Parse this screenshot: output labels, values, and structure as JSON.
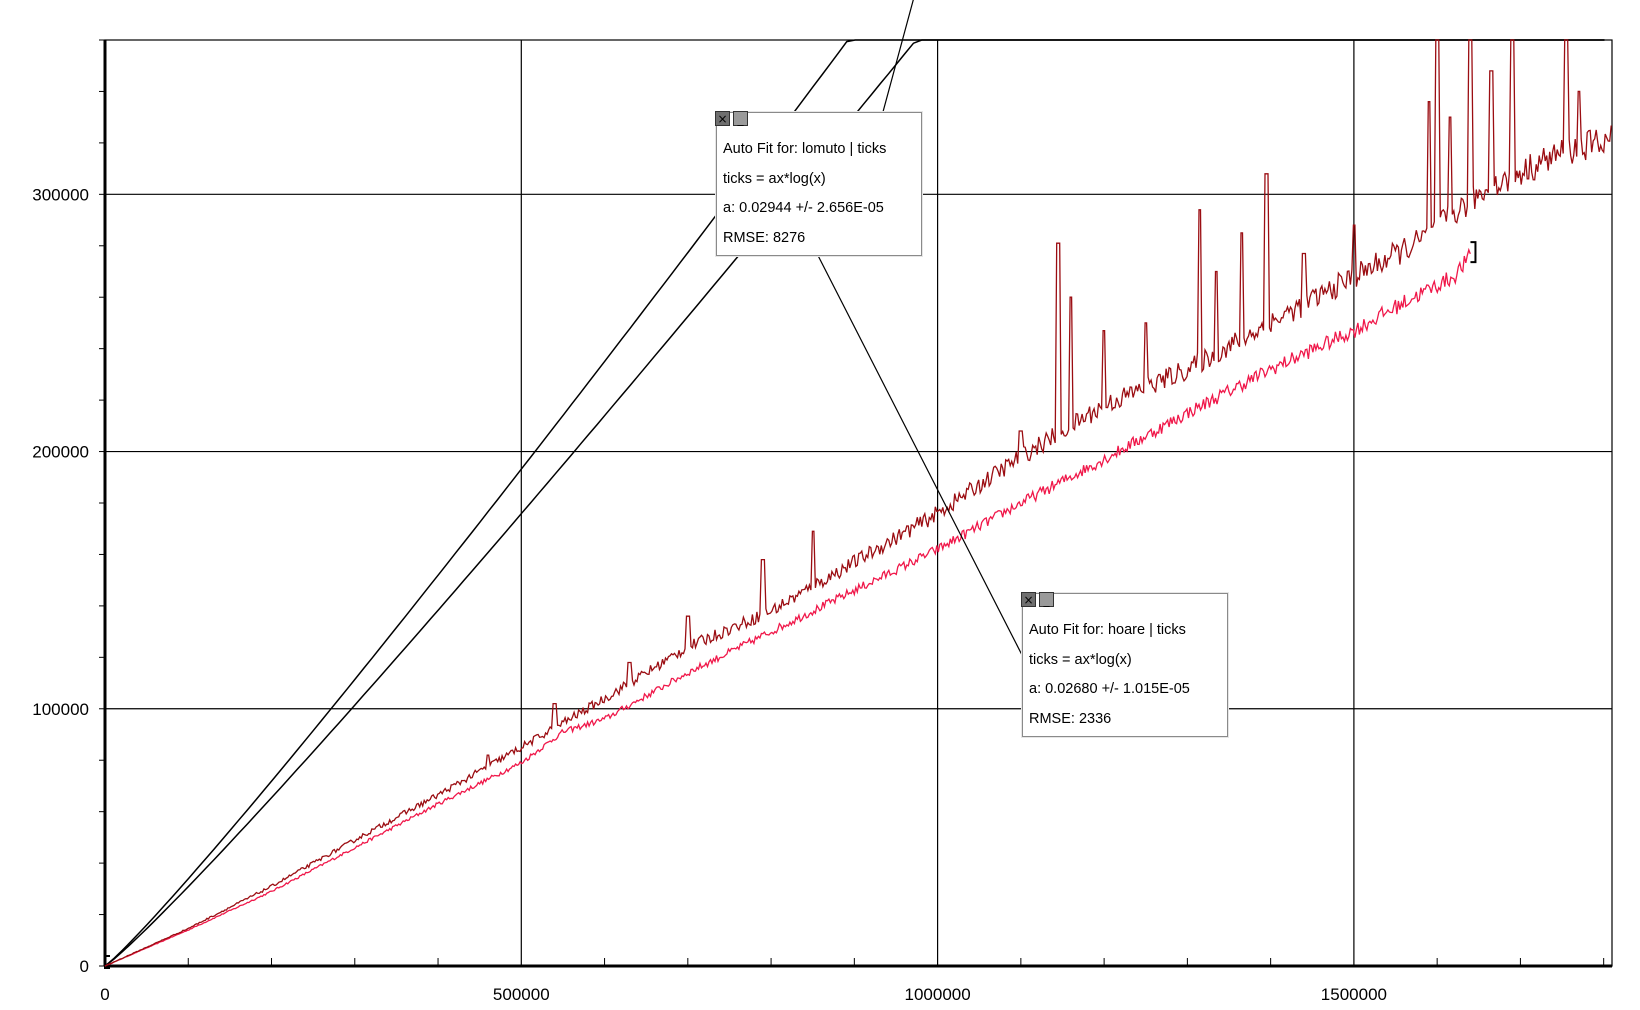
{
  "chart_data": {
    "type": "line",
    "xlim": [
      0,
      1810000
    ],
    "ylim": [
      0,
      360000
    ],
    "xticks": [
      0,
      500000,
      1000000,
      1500000
    ],
    "xtick_labels": [
      "0",
      "500000",
      "1000000",
      "1500000"
    ],
    "yticks": [
      0,
      100000,
      200000,
      300000
    ],
    "ytick_labels": [
      "0",
      "100000",
      "200000",
      "300000"
    ],
    "grid": true,
    "series": [
      {
        "name": "lomuto",
        "color": "#9b0d12",
        "points": [
          [
            0,
            0
          ],
          [
            100000,
            14600
          ],
          [
            200000,
            31000
          ],
          [
            300000,
            49000
          ],
          [
            400000,
            66500
          ],
          [
            500000,
            85000
          ],
          [
            600000,
            104000
          ],
          [
            700000,
            124000
          ],
          [
            800000,
            138000
          ],
          [
            900000,
            157000
          ],
          [
            1000000,
            176000
          ],
          [
            1100000,
            198000
          ],
          [
            1200000,
            218000
          ],
          [
            1300000,
            232000
          ],
          [
            1400000,
            250000
          ],
          [
            1500000,
            268000
          ],
          [
            1580000,
            282000
          ],
          [
            1650000,
            300000
          ],
          [
            1740000,
            315000
          ],
          [
            1810000,
            322000
          ]
        ],
        "spikes": [
          [
            460000,
            82000
          ],
          [
            540000,
            102000
          ],
          [
            630000,
            118000
          ],
          [
            700000,
            136000
          ],
          [
            790000,
            158000
          ],
          [
            850000,
            169000
          ],
          [
            1100000,
            208000
          ],
          [
            1145000,
            281000
          ],
          [
            1160000,
            260000
          ],
          [
            1200000,
            247000
          ],
          [
            1250000,
            250000
          ],
          [
            1315000,
            294000
          ],
          [
            1335000,
            270000
          ],
          [
            1365000,
            285000
          ],
          [
            1395000,
            308000
          ],
          [
            1440000,
            277000
          ],
          [
            1500000,
            288000
          ],
          [
            1590000,
            336000
          ],
          [
            1600000,
            362000
          ],
          [
            1615000,
            330000
          ],
          [
            1640000,
            362000
          ],
          [
            1665000,
            348000
          ],
          [
            1690000,
            362000
          ],
          [
            1755000,
            362000
          ],
          [
            1770000,
            340000
          ]
        ]
      },
      {
        "name": "hoare",
        "color": "#f0184a",
        "points": [
          [
            0,
            0
          ],
          [
            100000,
            14000
          ],
          [
            200000,
            29000
          ],
          [
            300000,
            46000
          ],
          [
            400000,
            63000
          ],
          [
            500000,
            79000
          ],
          [
            550000,
            91000
          ],
          [
            600000,
            96000
          ],
          [
            700000,
            114000
          ],
          [
            800000,
            130000
          ],
          [
            900000,
            146000
          ],
          [
            1000000,
            162000
          ],
          [
            1100000,
            180000
          ],
          [
            1200000,
            197000
          ],
          [
            1300000,
            215000
          ],
          [
            1400000,
            232000
          ],
          [
            1500000,
            247000
          ],
          [
            1560000,
            258000
          ],
          [
            1620000,
            268000
          ],
          [
            1640000,
            276000
          ]
        ]
      },
      {
        "name": "lomuto fit",
        "color": "#000000",
        "fit": "ax*log(x)",
        "a": 0.02944
      },
      {
        "name": "hoare fit",
        "color": "#000000",
        "fit": "ax*log(x)",
        "a": 0.0268
      }
    ]
  },
  "fit_boxes": [
    {
      "title": "Auto Fit for: lomuto | ticks",
      "equation": "ticks = ax*log(x)",
      "param": "a: 0.02944 +/- 2.656E-05",
      "rmse": "RMSE: 8276",
      "anchor_x": 995000
    },
    {
      "title": "Auto Fit for: hoare | ticks",
      "equation": "ticks = ax*log(x)",
      "param": "a: 0.02680 +/- 1.015E-05",
      "rmse": "RMSE: 2336",
      "anchor_x": 820000
    }
  ],
  "icons": {
    "close": "close-icon",
    "minimize": "minimize-icon"
  }
}
